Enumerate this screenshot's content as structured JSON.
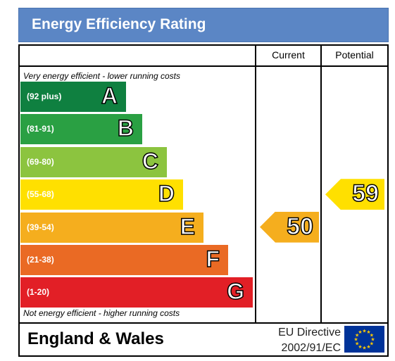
{
  "header": {
    "title": "Energy Efficiency Rating"
  },
  "columns": {
    "current": "Current",
    "potential": "Potential"
  },
  "notes": {
    "top": "Very energy efficient - lower running costs",
    "bottom": "Not energy efficient - higher running costs"
  },
  "chart_data": {
    "type": "bar",
    "title": "Energy Efficiency Rating",
    "categories": [
      "A",
      "B",
      "C",
      "D",
      "E",
      "F",
      "G"
    ],
    "ranges": [
      "(92 plus)",
      "(81-91)",
      "(69-80)",
      "(55-68)",
      "(39-54)",
      "(21-38)",
      "(1-20)"
    ],
    "colors": [
      "#0f8040",
      "#2aa043",
      "#8cc43f",
      "#ffe000",
      "#f5ae1e",
      "#ea6a24",
      "#e21f26"
    ],
    "current": {
      "value": 50,
      "band": "E",
      "color": "#f5ae1e"
    },
    "potential": {
      "value": 59,
      "band": "D",
      "color": "#ffe000"
    }
  },
  "footer": {
    "region": "England & Wales",
    "directive_line1": "EU Directive",
    "directive_line2": "2002/91/EC",
    "flag_icon": "eu-flag-icon"
  }
}
